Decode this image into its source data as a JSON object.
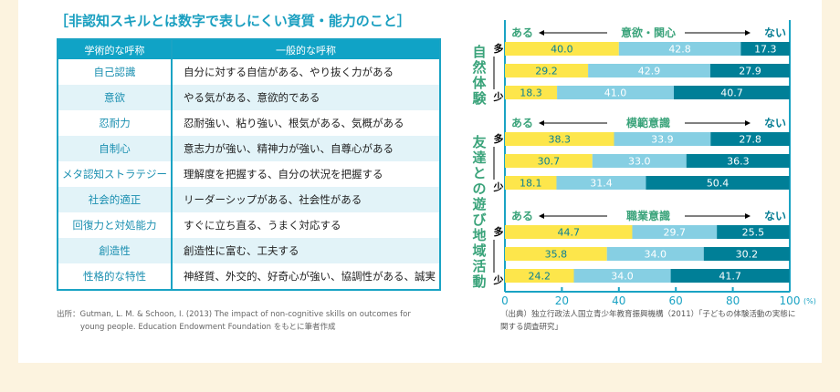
{
  "title": "［非認知スキルとは数字で表しにくい資質・能力のこと］",
  "table": {
    "headers": [
      "学術的な呼称",
      "一般的な呼称"
    ],
    "rows": [
      [
        "自己認識",
        "自分に対する自信がある、やり抜く力がある"
      ],
      [
        "意欲",
        "やる気がある、意欲的である"
      ],
      [
        "忍耐力",
        "忍耐強い、粘り強い、根気がある、気概がある"
      ],
      [
        "自制心",
        "意志力が強い、精神力が強い、自尊心がある"
      ],
      [
        "メタ認知ストラテジー",
        "理解度を把握する、自分の状況を把握する"
      ],
      [
        "社会的適正",
        "リーダーシップがある、社会性がある"
      ],
      [
        "回復力と対処能力",
        "すぐに立ち直る、うまく対応する"
      ],
      [
        "創造性",
        "創造性に富む、工夫する"
      ],
      [
        "性格的な特性",
        "神経質、外交的、好奇心が強い、協調性がある、誠実"
      ]
    ]
  },
  "source_left": [
    "出所：Gutman, L. M. & Schoon, I. (2013) The impact of non-cognitive skills on outcomes for",
    "young people. Education Endowment Foundation をもとに筆者作成"
  ],
  "source_right": "（出典）独立行政法人国立青少年教育振興機構（2011）「子どもの体験活動の実態に関する調査研究」",
  "chart_data": {
    "type": "bar",
    "stacked": true,
    "orientation": "horizontal",
    "xlim": [
      0,
      100
    ],
    "xticks": [
      0,
      20,
      40,
      60,
      80,
      100
    ],
    "xunit": "(%)",
    "left_label": "ある",
    "right_label": "ない",
    "high_label": "多",
    "low_label": "少",
    "colors": [
      "#fde64b",
      "#86cfe3",
      "#007f97"
    ],
    "groups": [
      {
        "name": "自然体験",
        "measure": "意欲・関心",
        "rows": [
          [
            40.0,
            42.8,
            17.3
          ],
          [
            29.2,
            42.9,
            27.9
          ],
          [
            18.3,
            41.0,
            40.7
          ]
        ]
      },
      {
        "name": "友達との遊び",
        "measure": "模範意識",
        "rows": [
          [
            38.3,
            33.9,
            27.8
          ],
          [
            30.7,
            33.0,
            36.3
          ],
          [
            18.1,
            31.4,
            50.4
          ]
        ]
      },
      {
        "name": "地域活動",
        "measure": "職業意識",
        "rows": [
          [
            44.7,
            29.7,
            25.5
          ],
          [
            35.8,
            34.0,
            30.2
          ],
          [
            24.2,
            34.0,
            41.7
          ]
        ]
      }
    ]
  }
}
